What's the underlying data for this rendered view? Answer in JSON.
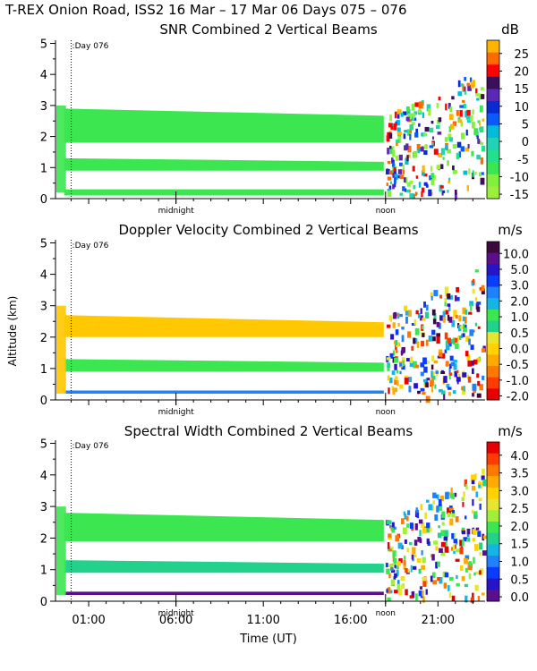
{
  "figure_title": "T-REX Onion Road, ISS2  16 Mar – 17 Mar 06 Days 075 – 076",
  "shared": {
    "ylabel": "Altitude (km)",
    "xlabel": "Time (UT)",
    "y_ticks": [
      "0",
      "1",
      "2",
      "3",
      "4",
      "5"
    ],
    "ylim": [
      0,
      5.1
    ],
    "xlim_hours": [
      -0.9,
      23.7
    ],
    "x_ticks": [
      {
        "label": "01:00",
        "hour": 1
      },
      {
        "label": "06:00",
        "hour": 6
      },
      {
        "label": "11:00",
        "hour": 11
      },
      {
        "label": "16:00",
        "hour": 16
      },
      {
        "label": "21:00",
        "hour": 21
      }
    ],
    "markers": [
      {
        "label": "midnight",
        "hour": 6
      },
      {
        "label": "noon",
        "hour": 18
      }
    ],
    "day_marker": {
      "label": ":Day 076",
      "hour": 0
    }
  },
  "chart_data": [
    {
      "type": "heatmap",
      "title": "SNR Combined 2 Vertical Beams",
      "unit": "dB",
      "colorbar_labels": [
        "25",
        "20",
        "15",
        "10",
        "5",
        "0",
        "-5",
        "-10",
        "-15"
      ],
      "colorbar_colors": [
        "#ffb400",
        "#ff6a00",
        "#ff0000",
        "#3c0f5a",
        "#5a28b4",
        "#0a2ad2",
        "#0a5aff",
        "#00bcd8",
        "#22d2b4",
        "#22e08c",
        "#3ce650",
        "#82f03c",
        "#9cf03c"
      ],
      "layers": [
        {
          "name": "upper layer",
          "alt_range_km": [
            1.8,
            2.9
          ],
          "color": "#3ce650"
        },
        {
          "name": "middle layer",
          "alt_range_km": [
            0.9,
            1.3
          ],
          "color": "#3ce650"
        },
        {
          "name": "surface layer",
          "alt_range_km": [
            0.1,
            0.3
          ],
          "color": "#3ce650"
        }
      ]
    },
    {
      "type": "heatmap",
      "title": "Doppler Velocity Combined 2 Vertical Beams",
      "unit": "m/s",
      "colorbar_labels": [
        "10.0",
        "5.0",
        "3.0",
        "2.0",
        "1.0",
        "0.5",
        "0.0",
        "-0.5",
        "-1.0",
        "-2.0"
      ],
      "colorbar_colors": [
        "#3c0a3c",
        "#5a0f8c",
        "#2814c8",
        "#0a3cff",
        "#1e82ff",
        "#14b4e6",
        "#3ce650",
        "#22d28c",
        "#e6e632",
        "#ffd200",
        "#ffaa00",
        "#ff7800",
        "#ff3c00",
        "#e60000"
      ],
      "layers": [
        {
          "name": "upper layer",
          "alt_range_km": [
            2.0,
            2.7
          ],
          "color": "#ffc800"
        },
        {
          "name": "middle layer",
          "alt_range_km": [
            0.9,
            1.3
          ],
          "color": "#3ce650"
        },
        {
          "name": "surface layer",
          "alt_range_km": [
            0.2,
            0.3
          ],
          "color": "#1e82ff"
        }
      ]
    },
    {
      "type": "heatmap",
      "title": "Spectral Width Combined 2 Vertical Beams",
      "unit": "m/s",
      "colorbar_labels": [
        "4.0",
        "3.5",
        "3.0",
        "2.5",
        "2.0",
        "1.5",
        "1.0",
        "0.5",
        "0.0"
      ],
      "colorbar_colors": [
        "#e60000",
        "#ff3c00",
        "#ff7800",
        "#ffaa00",
        "#ffd200",
        "#e6e632",
        "#a0ef3c",
        "#3ce650",
        "#22d28c",
        "#14b4e6",
        "#1e82ff",
        "#0a3cff",
        "#2814c8",
        "#5a0f8c"
      ],
      "layers": [
        {
          "name": "upper layer",
          "alt_range_km": [
            1.9,
            2.8
          ],
          "color": "#3ce650"
        },
        {
          "name": "middle layer",
          "alt_range_km": [
            0.9,
            1.3
          ],
          "color": "#22d28c"
        },
        {
          "name": "surface layer",
          "alt_range_km": [
            0.2,
            0.3
          ],
          "color": "#5a0f8c"
        }
      ]
    }
  ]
}
